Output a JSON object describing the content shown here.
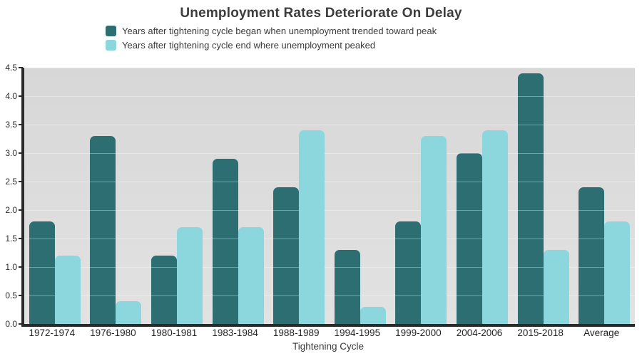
{
  "chart_data": {
    "type": "bar",
    "title": "Unemployment Rates Deteriorate On Delay",
    "xlabel": "Tightening Cycle",
    "ylabel": "",
    "ylim": [
      0,
      4.5
    ],
    "ytick_step": 0.5,
    "grid": true,
    "legend_position": "top-left",
    "categories": [
      "1972-1974",
      "1976-1980",
      "1980-1981",
      "1983-1984",
      "1988-1989",
      "1994-1995",
      "1999-2000",
      "2004-2006",
      "2015-2018",
      "Average"
    ],
    "series": [
      {
        "name": "Years after tightening cycle began when unemployment trended toward peak",
        "color": "#2d6e73",
        "values": [
          1.8,
          3.3,
          1.2,
          2.9,
          2.4,
          1.3,
          1.8,
          3.0,
          4.4,
          2.4
        ]
      },
      {
        "name": "Years after tightening cycle end where unemployment peaked",
        "color": "#8cd6de",
        "values": [
          1.2,
          0.4,
          1.7,
          1.7,
          3.4,
          0.3,
          3.3,
          3.4,
          1.3,
          1.8
        ]
      }
    ]
  },
  "colors": {
    "dark_series": "#2d6e73",
    "light_series": "#8cd6de",
    "plot_background": "#dcdcdc",
    "axis": "#2a2a2a",
    "text": "#3a3a3a"
  }
}
